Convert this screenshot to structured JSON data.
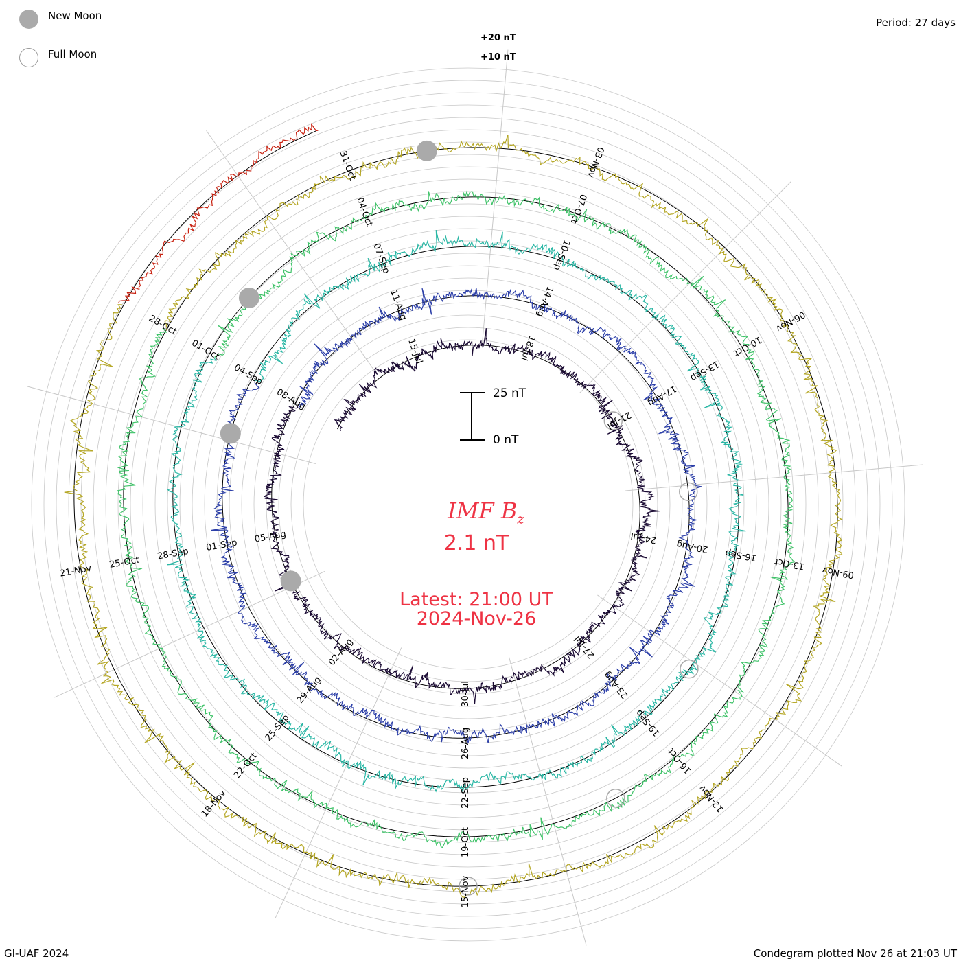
{
  "legend": {
    "new_moon": "New Moon",
    "full_moon": "Full Moon"
  },
  "period": "Period: 27 days",
  "credit": "GI-UAF 2024",
  "plotted": "Condegram plotted Nov 26 at 21:03 UT",
  "center": {
    "title": "IMF B",
    "subscript": "z",
    "value": "2.1 nT",
    "latest": "Latest: 21:00 UT",
    "date": "2024-Nov-26"
  },
  "scale": {
    "top": "25 nT",
    "bottom": "0 nT"
  },
  "ring_labels": [
    "+20 nT",
    "+10 nT"
  ],
  "colors": {
    "accent": "#ee3344",
    "spiral": [
      "#1a0a33",
      "#2b1a7a",
      "#2c3fa8",
      "#2f7fbe",
      "#2bb7a5",
      "#41c36a",
      "#8cc43a",
      "#b5a726",
      "#c8661a",
      "#c8200f"
    ]
  },
  "chart_data": {
    "type": "condegram",
    "title": "IMF Bz",
    "unit": "nT",
    "period_days": 27,
    "start": "2024-Jul-12",
    "end": "2024-Nov-26",
    "latest_value": 2.1,
    "scale_bar": [
      0,
      25
    ],
    "date_labels": [
      "15-Jul",
      "18-Jul",
      "21-Jul",
      "24-Jul",
      "27-Jul",
      "30-Jul",
      "02-Aug",
      "05-Aug",
      "08-Aug",
      "11-Aug",
      "14-Aug",
      "17-Aug",
      "20-Aug",
      "23-Aug",
      "26-Aug",
      "29-Aug",
      "01-Sep",
      "04-Sep",
      "07-Sep",
      "10-Sep",
      "13-Sep",
      "16-Sep",
      "19-Sep",
      "22-Sep",
      "25-Sep",
      "28-Sep",
      "01-Oct",
      "04-Oct",
      "07-Oct",
      "10-Oct",
      "13-Oct",
      "16-Oct",
      "19-Oct",
      "22-Oct",
      "25-Oct",
      "28-Oct",
      "31-Oct",
      "03-Nov",
      "06-Nov",
      "09-Nov",
      "12-Nov",
      "15-Nov",
      "18-Nov",
      "21-Nov"
    ],
    "new_moons": [
      "2024-Aug-04",
      "2024-Sep-03",
      "2024-Oct-02",
      "2024-Nov-01"
    ],
    "full_moons": [
      "2024-Jul-21",
      "2024-Aug-19",
      "2024-Sep-18",
      "2024-Oct-17",
      "2024-Nov-15"
    ]
  }
}
